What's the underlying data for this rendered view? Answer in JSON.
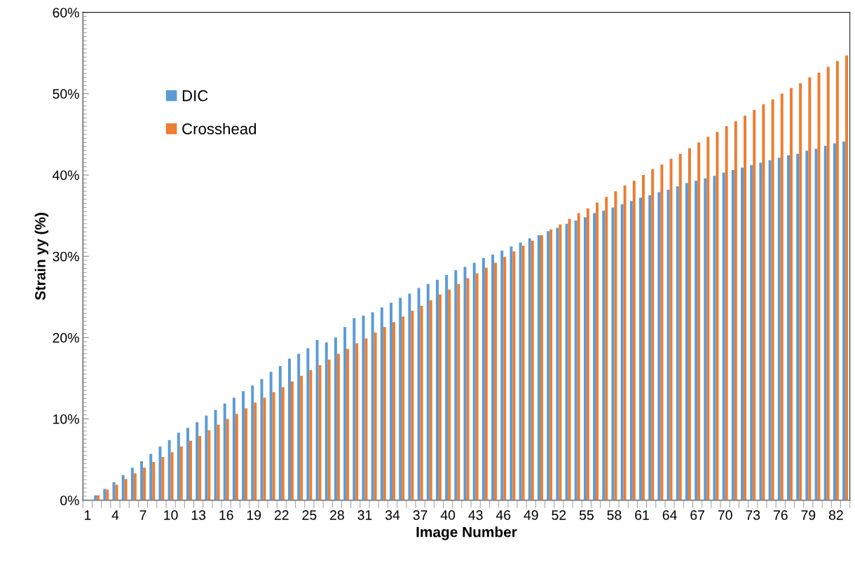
{
  "chart_data": {
    "type": "bar",
    "xlabel": "Image Number",
    "ylabel": "Strain yy (%)",
    "categories": [
      "1",
      null,
      null,
      "4",
      null,
      null,
      "7",
      null,
      null,
      "10",
      null,
      null,
      "13",
      null,
      null,
      "16",
      null,
      null,
      "19",
      null,
      null,
      "22",
      null,
      null,
      "25",
      null,
      null,
      "28",
      null,
      null,
      "31",
      null,
      null,
      "34",
      null,
      null,
      "37",
      null,
      null,
      "40",
      null,
      null,
      "43",
      null,
      null,
      "46",
      null,
      null,
      "49",
      null,
      null,
      "52",
      null,
      null,
      "55",
      null,
      null,
      "58",
      null,
      null,
      "61",
      null,
      null,
      "64",
      null,
      null,
      "67",
      null,
      null,
      "70",
      null,
      null,
      "73",
      null,
      null,
      "76",
      null,
      null,
      "79",
      null,
      null,
      "82",
      null
    ],
    "series": [
      {
        "name": "DIC",
        "color": "#5b9bd5",
        "values": [
          0,
          0.6,
          1.4,
          2.2,
          3.1,
          4.0,
          4.8,
          5.7,
          6.6,
          7.4,
          8.3,
          8.9,
          9.6,
          10.4,
          11.1,
          11.9,
          12.6,
          13.4,
          14.1,
          14.9,
          15.8,
          16.5,
          17.4,
          18.0,
          18.7,
          19.7,
          19.4,
          20.0,
          21.3,
          22.4,
          22.7,
          23.1,
          23.7,
          24.3,
          24.9,
          25.4,
          26.1,
          26.6,
          27.1,
          27.7,
          28.3,
          28.7,
          29.2,
          29.8,
          30.2,
          30.7,
          31.2,
          31.7,
          32.2,
          32.6,
          33.1,
          33.5,
          34.0,
          34.4,
          34.8,
          35.3,
          35.6,
          36.0,
          36.4,
          36.8,
          37.2,
          37.5,
          37.9,
          38.2,
          38.6,
          39.0,
          39.3,
          39.6,
          39.9,
          40.3,
          40.6,
          40.9,
          41.2,
          41.5,
          41.8,
          42.1,
          42.4,
          42.6,
          43.0,
          43.2,
          43.6,
          43.9,
          44.1
        ]
      },
      {
        "name": "Crosshead",
        "color": "#ed7d31",
        "values": [
          0,
          0.6,
          1.3,
          1.9,
          2.6,
          3.3,
          4.0,
          4.7,
          5.3,
          5.9,
          6.6,
          7.3,
          7.9,
          8.6,
          9.3,
          10.0,
          10.6,
          11.3,
          12.0,
          12.6,
          13.3,
          13.9,
          14.6,
          15.3,
          16.0,
          16.6,
          17.3,
          18.0,
          18.6,
          19.3,
          19.9,
          20.6,
          21.3,
          21.9,
          22.6,
          23.3,
          23.9,
          24.6,
          25.3,
          25.9,
          26.6,
          27.3,
          27.9,
          28.6,
          29.2,
          29.9,
          30.6,
          31.3,
          31.9,
          32.6,
          33.3,
          33.9,
          34.6,
          35.3,
          35.9,
          36.6,
          37.3,
          38.0,
          38.7,
          39.3,
          40.0,
          40.7,
          41.3,
          42.0,
          42.6,
          43.3,
          44.0,
          44.7,
          45.3,
          46.0,
          46.6,
          47.3,
          48.0,
          48.7,
          49.3,
          50.0,
          50.7,
          51.3,
          52.0,
          52.6,
          53.3,
          54.0,
          54.7
        ]
      }
    ],
    "ylim": [
      0,
      60
    ],
    "yticks": [
      {
        "value": 0,
        "label": "0%"
      },
      {
        "value": 10,
        "label": "10%"
      },
      {
        "value": 20,
        "label": "20%"
      },
      {
        "value": 30,
        "label": "30%"
      },
      {
        "value": 40,
        "label": "40%"
      },
      {
        "value": 50,
        "label": "50%"
      },
      {
        "value": 60,
        "label": "60%"
      }
    ],
    "grid": false,
    "legend": "top left"
  }
}
